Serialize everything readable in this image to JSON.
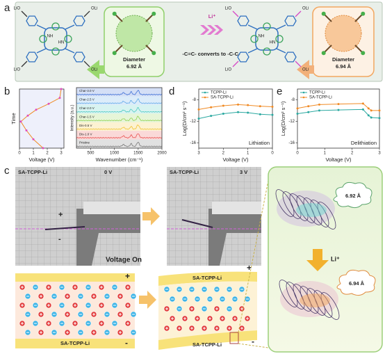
{
  "panel_labels": [
    "a",
    "b",
    "c",
    "d",
    "e"
  ],
  "panel_a": {
    "left_molecule": {
      "groups": [
        "LiO",
        "OLi",
        "LiO",
        "OLi"
      ],
      "nh": "NH",
      "hn": "HN"
    },
    "left_diameter": {
      "label": "Diameter",
      "value": "6.92 Å"
    },
    "arrow_label": "Li⁺",
    "conversion": "-C=C- converts to -C-C-",
    "right_molecule": {
      "groups": [
        "LiO",
        "OLi",
        "LiO",
        "OLi"
      ],
      "nh": "NH",
      "hn": "HN"
    },
    "right_diameter": {
      "label": "Diameter",
      "value": "6.94 Å"
    }
  },
  "chart_data": [
    {
      "type": "line",
      "xlabel": "Voltage (V)",
      "ylabel": "Time",
      "x": [
        1.7,
        1.0,
        0.5,
        0.1,
        0.6,
        1.2,
        2.1,
        2.9,
        3.0
      ],
      "xlim": [
        0,
        3.2
      ],
      "xticks": [
        0,
        1,
        2,
        3
      ],
      "ylim": [
        0,
        10
      ],
      "series": [
        {
          "color": "#f08a24",
          "values": [
            0,
            1.5,
            3,
            4.5,
            5.5,
            6.5,
            7.5,
            8.5,
            10
          ]
        }
      ]
    },
    {
      "type": "spectra",
      "xlabel": "Wavenumber (cm⁻¹)",
      "ylabel": "Intensity (a.u.)",
      "xlim": [
        200,
        2000
      ],
      "xticks": [
        500,
        1000,
        1500,
        2000
      ],
      "series": [
        {
          "name": "Char-3.0 V",
          "color": "#3d6fd6"
        },
        {
          "name": "Char-2.5 V",
          "color": "#5fa8e8"
        },
        {
          "name": "Char-2.0 V",
          "color": "#4cc9c0"
        },
        {
          "name": "Char-1.5 V",
          "color": "#8fd14f"
        },
        {
          "name": "Dis-0.5 V",
          "color": "#f2c230"
        },
        {
          "name": "Dis-1.0 V",
          "color": "#e9504f"
        },
        {
          "name": "Pristine",
          "color": "#777777"
        }
      ]
    },
    {
      "type": "line",
      "xlabel": "Voltage (V)",
      "ylabel": "Log(D/cm² s⁻¹)",
      "annotation": "Lithiation",
      "x": [
        3,
        2.5,
        2,
        1.4,
        1,
        0.5,
        0
      ],
      "xlim": [
        3,
        0
      ],
      "xticks": [
        3,
        2,
        1,
        0
      ],
      "ylim": [
        -17,
        -6
      ],
      "yticks": [
        -8,
        -12,
        -16
      ],
      "series": [
        {
          "name": "TCPP-Li",
          "color": "#2aa8a0",
          "values": [
            -11.5,
            -11.0,
            -10.6,
            -10.3,
            -10.4,
            -10.7,
            -10.8
          ]
        },
        {
          "name": "SA-TCPP-Li",
          "color": "#f08a24",
          "values": [
            -9.8,
            -9.4,
            -9.1,
            -8.9,
            -9.0,
            -9.2,
            -9.3
          ]
        }
      ]
    },
    {
      "type": "line",
      "xlabel": "Voltage (V)",
      "ylabel": "Log(D/cm² s⁻¹)",
      "annotation": "Delithiation",
      "x": [
        0,
        0.4,
        0.8,
        1.5,
        2.4,
        2.6,
        2.7,
        3
      ],
      "xlim": [
        0,
        3
      ],
      "xticks": [
        0,
        1,
        2,
        3
      ],
      "ylim": [
        -17,
        -6
      ],
      "yticks": [
        -8,
        -12,
        -16
      ],
      "series": [
        {
          "name": "TCPP-Li",
          "color": "#2aa8a0",
          "values": [
            -10.6,
            -10.3,
            -10.0,
            -9.9,
            -9.8,
            -10.9,
            -11.3,
            -11.4
          ]
        },
        {
          "name": "SA-TCPP-Li",
          "color": "#f08a24",
          "values": [
            -9.6,
            -9.2,
            -8.9,
            -8.8,
            -8.7,
            -9.6,
            -10.0,
            -10.0
          ]
        }
      ]
    }
  ],
  "panel_c": {
    "photo_left": {
      "sample": "SA-TCPP-Li",
      "voltage": "0 V",
      "plus": "+",
      "minus": "-"
    },
    "photo_right": {
      "sample": "SA-TCPP-Li",
      "voltage": "3 V"
    },
    "caption": "Voltage On",
    "scheme_left": {
      "top_sign": "+",
      "bottom_label": "SA-TCPP-Li",
      "bottom_sign": "-"
    },
    "scheme_right": {
      "top_label": "SA-TCPP-Li",
      "top_sign": "+",
      "bottom_label": "SA-TCPP-Li",
      "bottom_sign": "-"
    },
    "model": {
      "top": "6.92 Å",
      "ion": "Li⁺",
      "bottom": "6.94 Å"
    }
  }
}
